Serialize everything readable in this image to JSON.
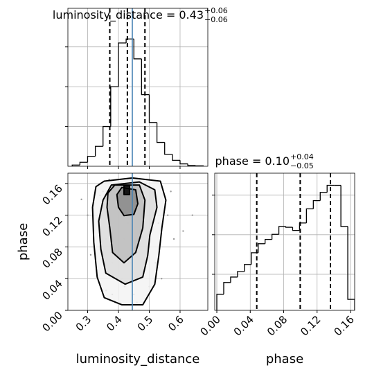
{
  "chart_data": [
    {
      "type": "histogram",
      "title": "luminosity_distance = 0.43",
      "title_sup": "+0.06",
      "title_sub": "−0.06",
      "bins": [
        0.25,
        0.275,
        0.3,
        0.325,
        0.35,
        0.375,
        0.4,
        0.425,
        0.45,
        0.475,
        0.5,
        0.525,
        0.55,
        0.575,
        0.6,
        0.625,
        0.65,
        0.675
      ],
      "values": [
        0.03,
        0.1,
        0.25,
        0.5,
        1.0,
        2.0,
        3.1,
        3.2,
        2.7,
        1.8,
        1.1,
        0.6,
        0.3,
        0.15,
        0.06,
        0.02,
        0.01
      ],
      "color": "#000000",
      "xlim": [
        0.236,
        0.69
      ],
      "ylim": [
        0,
        3.97
      ],
      "xticks": [
        0.3,
        0.4,
        0.5,
        0.6
      ],
      "yticks": [
        1,
        2,
        3
      ],
      "quantiles": [
        0.372,
        0.429,
        0.486
      ],
      "truth": 0.445,
      "truth_color": "#4682b4",
      "grid": true
    },
    {
      "type": "corner2d",
      "xlabel": "luminosity_distance",
      "ylabel": "phase",
      "xlim": [
        0.236,
        0.69
      ],
      "ylim": [
        0,
        0.173
      ],
      "xticks": [
        0.3,
        0.4,
        0.5,
        0.6
      ],
      "yticks": [
        {
          "value": 0,
          "label": "0.00"
        },
        0.04,
        0.08,
        0.12,
        0.16
      ],
      "x": [
        0.3,
        0.33,
        0.35,
        0.36,
        0.38,
        0.39,
        0.4,
        0.41,
        0.42,
        0.43,
        0.44,
        0.45,
        0.46,
        0.47,
        0.48,
        0.5,
        0.52,
        0.54,
        0.56,
        0.58,
        0.37,
        0.41,
        0.45,
        0.49,
        0.53,
        0.34,
        0.38,
        0.42,
        0.46,
        0.5,
        0.31,
        0.36,
        0.4,
        0.44,
        0.48,
        0.52,
        0.57,
        0.61,
        0.28,
        0.64
      ],
      "y": [
        0.12,
        0.05,
        0.15,
        0.09,
        0.02,
        0.13,
        0.07,
        0.16,
        0.03,
        0.11,
        0.06,
        0.14,
        0.01,
        0.1,
        0.155,
        0.08,
        0.13,
        0.04,
        0.12,
        0.09,
        0.165,
        0.04,
        0.02,
        0.16,
        0.11,
        0.145,
        0.06,
        0.09,
        0.135,
        0.03,
        0.07,
        0.025,
        0.14,
        0.165,
        0.115,
        0.06,
        0.15,
        0.1,
        0.14,
        0.12
      ],
      "point_color": "#9a9a9a",
      "contours": [
        {
          "x": [
            0.354,
            0.445,
            0.536,
            0.554,
            0.541,
            0.531,
            0.518,
            0.479,
            0.411,
            0.354,
            0.331,
            0.32,
            0.316,
            0.327
          ],
          "y": [
            0.163,
            0.167,
            0.163,
            0.139,
            0.104,
            0.069,
            0.033,
            0.007,
            0.007,
            0.016,
            0.042,
            0.086,
            0.13,
            0.156
          ]
        },
        {
          "x": [
            0.377,
            0.468,
            0.518,
            0.525,
            0.502,
            0.495,
            0.479,
            0.422,
            0.359,
            0.343,
            0.336,
            0.35
          ],
          "y": [
            0.158,
            0.162,
            0.152,
            0.13,
            0.095,
            0.069,
            0.042,
            0.033,
            0.047,
            0.077,
            0.1125,
            0.139
          ]
        },
        {
          "x": [
            0.388,
            0.468,
            0.486,
            0.479,
            0.456,
            0.418,
            0.381,
            0.372,
            0.363,
            0.366
          ],
          "y": [
            0.158,
            0.158,
            0.139,
            0.104,
            0.073,
            0.06,
            0.073,
            0.104,
            0.13,
            0.148
          ]
        },
        {
          "x": [
            0.411,
            0.456,
            0.463,
            0.45,
            0.418,
            0.4,
            0.395
          ],
          "y": [
            0.155,
            0.152,
            0.1345,
            0.121,
            0.1195,
            0.13,
            0.146
          ]
        },
        {
          "x": [
            0.418,
            0.436,
            0.436,
            0.418
          ],
          "y": [
            0.157,
            0.157,
            0.146,
            0.146
          ]
        }
      ],
      "contour_fills": [
        "#f3f3f3",
        "#dcdcdc",
        "#bdbdbd",
        "#8a8a8a",
        "#000000"
      ],
      "truth": 0.445,
      "truth_color": "#4682b4",
      "grid": true
    },
    {
      "type": "histogram",
      "title": "phase = 0.10",
      "title_sup": "+0.04",
      "title_sub": "−0.05",
      "xlabel": "phase",
      "bins": [
        0,
        0.00825,
        0.0165,
        0.02475,
        0.033,
        0.04125,
        0.0495,
        0.05775,
        0.066,
        0.07425,
        0.0825,
        0.09075,
        0.099,
        0.10725,
        0.1155,
        0.12375,
        0.132,
        0.14025,
        0.1485,
        0.15675,
        0.165
      ],
      "values": [
        0.41,
        0.71,
        0.85,
        0.99,
        1.17,
        1.47,
        1.7,
        1.81,
        1.94,
        2.14,
        2.12,
        2.04,
        2.23,
        2.59,
        2.8,
        3.01,
        3.19,
        3.19,
        2.14,
        0.28
      ],
      "color": "#000000",
      "xlim": [
        -0.0025,
        0.165
      ],
      "ylim": [
        0,
        3.5
      ],
      "xticks": [
        {
          "value": 0,
          "label": "0.00"
        },
        0.04,
        0.08,
        0.12,
        0.16
      ],
      "yticks": [
        0.92,
        1.93,
        2.94
      ],
      "quantiles": [
        0.0478,
        0.0998,
        0.136
      ],
      "grid": true
    }
  ]
}
